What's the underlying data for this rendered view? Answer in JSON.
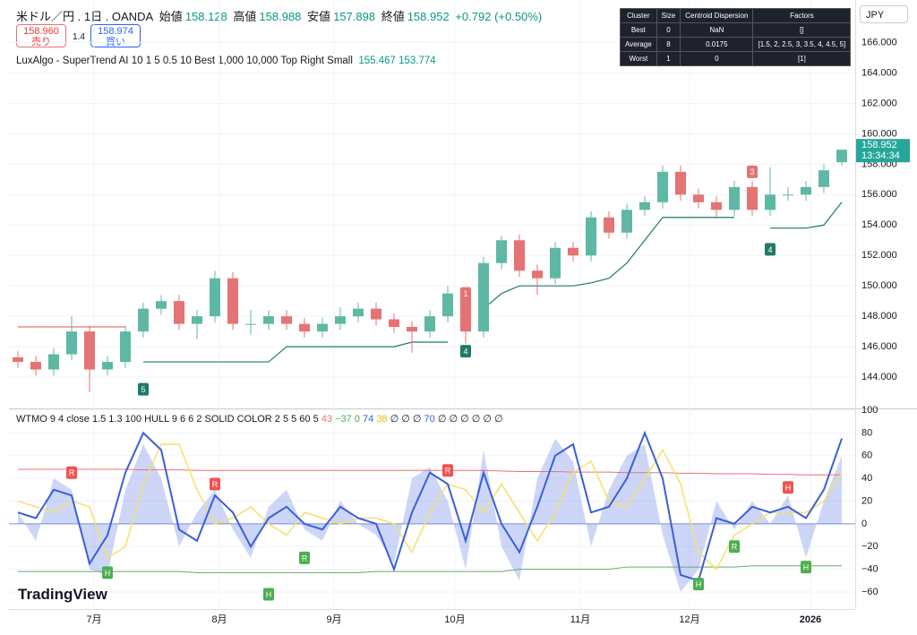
{
  "header": {
    "symbol": "米ドル／円 . 1日 . OANDA",
    "open_label": "始値",
    "open": "158.128",
    "high_label": "高値",
    "high": "158.988",
    "low_label": "安値",
    "low": "157.898",
    "close_label": "終値",
    "close": "158.952",
    "change": "+0.792 (+0.50%)",
    "sell_price": "158.960",
    "sell_label": "売り",
    "spread": "1.4",
    "buy_price": "158.974",
    "buy_label": "買い",
    "currency": "JPY"
  },
  "indicator": {
    "name": "LuxAlgo - SuperTrend AI 10 1 5 0.5 10 Best 1,000 10,000 Top Right Small",
    "v1": "155.467",
    "v2": "153.774"
  },
  "table": {
    "header": [
      "Cluster",
      "Size",
      "Centroid Dispersion",
      "Factors"
    ],
    "rows": [
      [
        "Best",
        "0",
        "NaN",
        "[]"
      ],
      [
        "Average",
        "8",
        "0.0175",
        "[1.5, 2, 2.5, 3, 3.5, 4, 4.5, 5]"
      ],
      [
        "Worst",
        "1",
        "0",
        "[1]"
      ]
    ]
  },
  "oscillator_legend": {
    "name": "WTMO 9 4 close 1.5 1.3 100 HULL 9 6 6 2 SOLID COLOR 2 5 5 60 5",
    "v1": "43",
    "v2": "−37",
    "v3": "0",
    "v4": "74",
    "v5": "38",
    "v6": "∅ ∅ ∅",
    "v7": "70",
    "v8": "∅ ∅ ∅ ∅ ∅ ∅"
  },
  "logo": "TradingView",
  "chart_data": [
    {
      "type": "candlestick",
      "ylim": [
        142,
        168.8
      ],
      "yticks": [
        {
          "value": 144,
          "label": "144.000"
        },
        {
          "value": 146,
          "label": "146.000"
        },
        {
          "value": 148,
          "label": "148.000"
        },
        {
          "value": 150,
          "label": "150.000"
        },
        {
          "value": 152,
          "label": "152.000"
        },
        {
          "value": 154,
          "label": "154.000"
        },
        {
          "value": 156,
          "label": "156.000"
        },
        {
          "value": 158,
          "label": "158.000"
        },
        {
          "value": 160,
          "label": "160.000"
        },
        {
          "value": 162,
          "label": "162.000"
        },
        {
          "value": 164,
          "label": "164.000"
        },
        {
          "value": 166,
          "label": "166.000"
        }
      ],
      "last_price": {
        "value": 158.952,
        "label": "158.952",
        "time": "13:34:34"
      },
      "up_color": "#5fb8a4",
      "down_color": "#e57373",
      "ohlc": [
        [
          145.3,
          145.7,
          144.6,
          145
        ],
        [
          145,
          145.4,
          144.1,
          144.5
        ],
        [
          144.5,
          145.9,
          144.1,
          145.5
        ],
        [
          145.5,
          148,
          145.1,
          147
        ],
        [
          147,
          147.4,
          143,
          144.5
        ],
        [
          144.5,
          145.4,
          144.1,
          145
        ],
        [
          145,
          147.4,
          144.6,
          147
        ],
        [
          147,
          148.9,
          146.6,
          148.5
        ],
        [
          148.5,
          149.4,
          148.1,
          149
        ],
        [
          149,
          149.4,
          147.1,
          147.5
        ],
        [
          147.5,
          148.4,
          146.5,
          148
        ],
        [
          148,
          151,
          147.6,
          150.5
        ],
        [
          150.5,
          150.9,
          147.1,
          147.5
        ],
        [
          147.5,
          148.4,
          146.8,
          147.5
        ],
        [
          147.5,
          148.4,
          147.1,
          148
        ],
        [
          148,
          148.4,
          147.1,
          147.5
        ],
        [
          147.5,
          147.9,
          146.6,
          147
        ],
        [
          147,
          147.9,
          146.6,
          147.5
        ],
        [
          147.5,
          148.6,
          147.1,
          148
        ],
        [
          148,
          148.9,
          147.6,
          148.5
        ],
        [
          148.5,
          148.9,
          147.4,
          147.8
        ],
        [
          147.8,
          148.2,
          146.9,
          147.3
        ],
        [
          147.3,
          147.7,
          145.6,
          147
        ],
        [
          147,
          148.4,
          146.6,
          148
        ],
        [
          148,
          150,
          147.6,
          149.5
        ],
        [
          149.5,
          149.9,
          146.2,
          147
        ],
        [
          147,
          151.9,
          146.6,
          151.5
        ],
        [
          151.5,
          153.3,
          151.1,
          153
        ],
        [
          153,
          153.4,
          150.6,
          151
        ],
        [
          151,
          151.4,
          149.4,
          150.5
        ],
        [
          150.5,
          152.9,
          150.1,
          152.5
        ],
        [
          152.5,
          152.9,
          151.6,
          152
        ],
        [
          152,
          154.9,
          151.6,
          154.5
        ],
        [
          154.5,
          154.9,
          153.1,
          153.5
        ],
        [
          153.5,
          155.4,
          153.1,
          155
        ],
        [
          155,
          155.9,
          154.6,
          155.5
        ],
        [
          155.5,
          157.9,
          155.1,
          157.5
        ],
        [
          157.5,
          157.9,
          155.6,
          156
        ],
        [
          156,
          156.4,
          155.1,
          155.5
        ],
        [
          155.5,
          155.9,
          154.4,
          155
        ],
        [
          155,
          156.9,
          154.6,
          156.5
        ],
        [
          156.5,
          156.9,
          154.6,
          155
        ],
        [
          155,
          157.8,
          154.6,
          156
        ],
        [
          156,
          156.5,
          155.6,
          156
        ],
        [
          156,
          156.9,
          155.6,
          156.5
        ],
        [
          156.5,
          158,
          156.1,
          157.6
        ],
        [
          158.128,
          158.988,
          157.898,
          158.952
        ]
      ],
      "series": [
        {
          "name": "SuperTrend bear",
          "color": "#e57373",
          "values": [
            147.3,
            147.3,
            147.3,
            147.3,
            147.3,
            147.3,
            147.3,
            null,
            null,
            null,
            null,
            null,
            null,
            null,
            null,
            null,
            null,
            null,
            null,
            null,
            null,
            null,
            null,
            null,
            null,
            148.5,
            null,
            null,
            null,
            null,
            null,
            null,
            null,
            null,
            null,
            null,
            null,
            null,
            null,
            null,
            null,
            156.7,
            null,
            null,
            null,
            null,
            null
          ]
        },
        {
          "name": "SuperTrend bull",
          "color": "#1e7a68",
          "values": [
            null,
            null,
            null,
            null,
            null,
            null,
            null,
            145,
            145,
            145,
            145,
            145,
            145,
            145,
            145,
            146,
            146,
            146,
            146,
            146,
            146,
            146,
            146.3,
            146.3,
            146.3,
            null,
            148.5,
            149.5,
            150,
            150,
            150,
            150,
            150.2,
            150.5,
            151.5,
            153,
            154.5,
            154.5,
            154.5,
            154.5,
            154.5,
            null,
            153.8,
            153.8,
            153.8,
            154,
            155.5
          ]
        }
      ],
      "markers": [
        {
          "index": 7,
          "value": 143.2,
          "label": "5",
          "color": "#1e7a68"
        },
        {
          "index": 25,
          "value": 149.5,
          "label": "1",
          "color": "#e57373"
        },
        {
          "index": 25,
          "value": 145.7,
          "label": "4",
          "color": "#1e7a68"
        },
        {
          "index": 41,
          "value": 157.5,
          "label": "3",
          "color": "#e57373"
        },
        {
          "index": 42,
          "value": 152.4,
          "label": "4",
          "color": "#1e7a68"
        }
      ]
    },
    {
      "type": "line",
      "ylim": [
        -75,
        100
      ],
      "yticks": [
        100,
        80,
        60,
        40,
        20,
        0,
        {
          "value": -20,
          "label": "−20"
        },
        {
          "value": -40,
          "label": "−40"
        },
        {
          "value": -60,
          "label": "−60"
        }
      ],
      "xticks": [
        {
          "value": 4.25,
          "label": "7月"
        },
        {
          "value": 11.25,
          "label": "8月"
        },
        {
          "value": 17.65,
          "label": "9月"
        },
        {
          "value": 24.4,
          "label": "10月"
        },
        {
          "value": 31.4,
          "label": "11月"
        },
        {
          "value": 37.5,
          "label": "12月"
        },
        {
          "value": 44.25,
          "label": "2026"
        }
      ],
      "area": {
        "color": "rgba(90,120,230,0.3)",
        "values": [
          10,
          -15,
          40,
          30,
          -40,
          -45,
          30,
          70,
          40,
          -20,
          10,
          30,
          -5,
          -30,
          15,
          30,
          -5,
          -15,
          20,
          0,
          -10,
          -35,
          40,
          50,
          20,
          -40,
          65,
          -20,
          -50,
          40,
          75,
          55,
          -20,
          30,
          60,
          70,
          -10,
          -60,
          -40,
          20,
          -5,
          20,
          0,
          25,
          -30,
          20,
          60
        ]
      },
      "series": [
        {
          "name": "upper",
          "color": "#e57373",
          "width": 1,
          "values": [
            48,
            48,
            48,
            48,
            48,
            48,
            48,
            47.5,
            47.5,
            47.5,
            47,
            47,
            47,
            47,
            47,
            47,
            47,
            47,
            47,
            47,
            47,
            47,
            47,
            47,
            47,
            47,
            47,
            46.5,
            46,
            46,
            46,
            45.5,
            45.5,
            45.5,
            45,
            45,
            45,
            44.5,
            44.5,
            44,
            44,
            44,
            43.5,
            43.5,
            43,
            43,
            43
          ]
        },
        {
          "name": "lower",
          "color": "#66aa66",
          "width": 1,
          "values": [
            -42,
            -42,
            -42,
            -42,
            -42,
            -42,
            -42,
            -42,
            -42,
            -42,
            -43,
            -43,
            -43,
            -43,
            -43,
            -43,
            -43,
            -43,
            -43,
            -43,
            -42,
            -42,
            -42,
            -42,
            -42,
            -42,
            -42,
            -42,
            -40,
            -40,
            -40,
            -40,
            -40,
            -40,
            -38,
            -38,
            -38,
            -38,
            -38,
            -38,
            -38,
            -37,
            -37,
            -37,
            -37,
            -37,
            -37
          ]
        },
        {
          "name": "signal",
          "color": "#f5e06a",
          "width": 1.5,
          "values": [
            20,
            15,
            10,
            20,
            15,
            -30,
            -20,
            35,
            70,
            70,
            30,
            0,
            5,
            15,
            0,
            -10,
            10,
            5,
            0,
            5,
            5,
            0,
            -25,
            10,
            35,
            30,
            10,
            35,
            10,
            -15,
            10,
            45,
            55,
            20,
            15,
            40,
            65,
            35,
            -25,
            -40,
            -10,
            0,
            10,
            10,
            10,
            20,
            45
          ]
        },
        {
          "name": "wave",
          "color": "#3a5fd9",
          "width": 2,
          "values": [
            10,
            5,
            30,
            25,
            -35,
            -10,
            45,
            80,
            65,
            -5,
            -15,
            25,
            10,
            -20,
            5,
            15,
            0,
            -5,
            15,
            5,
            0,
            -40,
            10,
            45,
            35,
            -15,
            45,
            0,
            -25,
            15,
            60,
            70,
            10,
            15,
            40,
            80,
            40,
            -45,
            -50,
            5,
            0,
            15,
            10,
            15,
            5,
            30,
            75
          ]
        }
      ],
      "signals": [
        {
          "index": 3,
          "value": 45,
          "label": "R",
          "color": "#ef5350"
        },
        {
          "index": 11,
          "value": 35,
          "label": "R",
          "color": "#ef5350"
        },
        {
          "index": 24,
          "value": 47,
          "label": "R",
          "color": "#ef5350"
        },
        {
          "index": 43,
          "value": 32,
          "label": "H",
          "color": "#ef5350"
        },
        {
          "index": 5,
          "value": -43,
          "label": "H",
          "color": "#4caf50"
        },
        {
          "index": 14,
          "value": -62,
          "label": "H",
          "color": "#4caf50"
        },
        {
          "index": 16,
          "value": -30,
          "label": "R",
          "color": "#4caf50"
        },
        {
          "index": 40,
          "value": -20,
          "label": "R",
          "color": "#4caf50"
        },
        {
          "index": 38,
          "value": -53,
          "label": "H",
          "color": "#4caf50"
        },
        {
          "index": 44,
          "value": -38,
          "label": "H",
          "color": "#4caf50"
        }
      ]
    }
  ]
}
